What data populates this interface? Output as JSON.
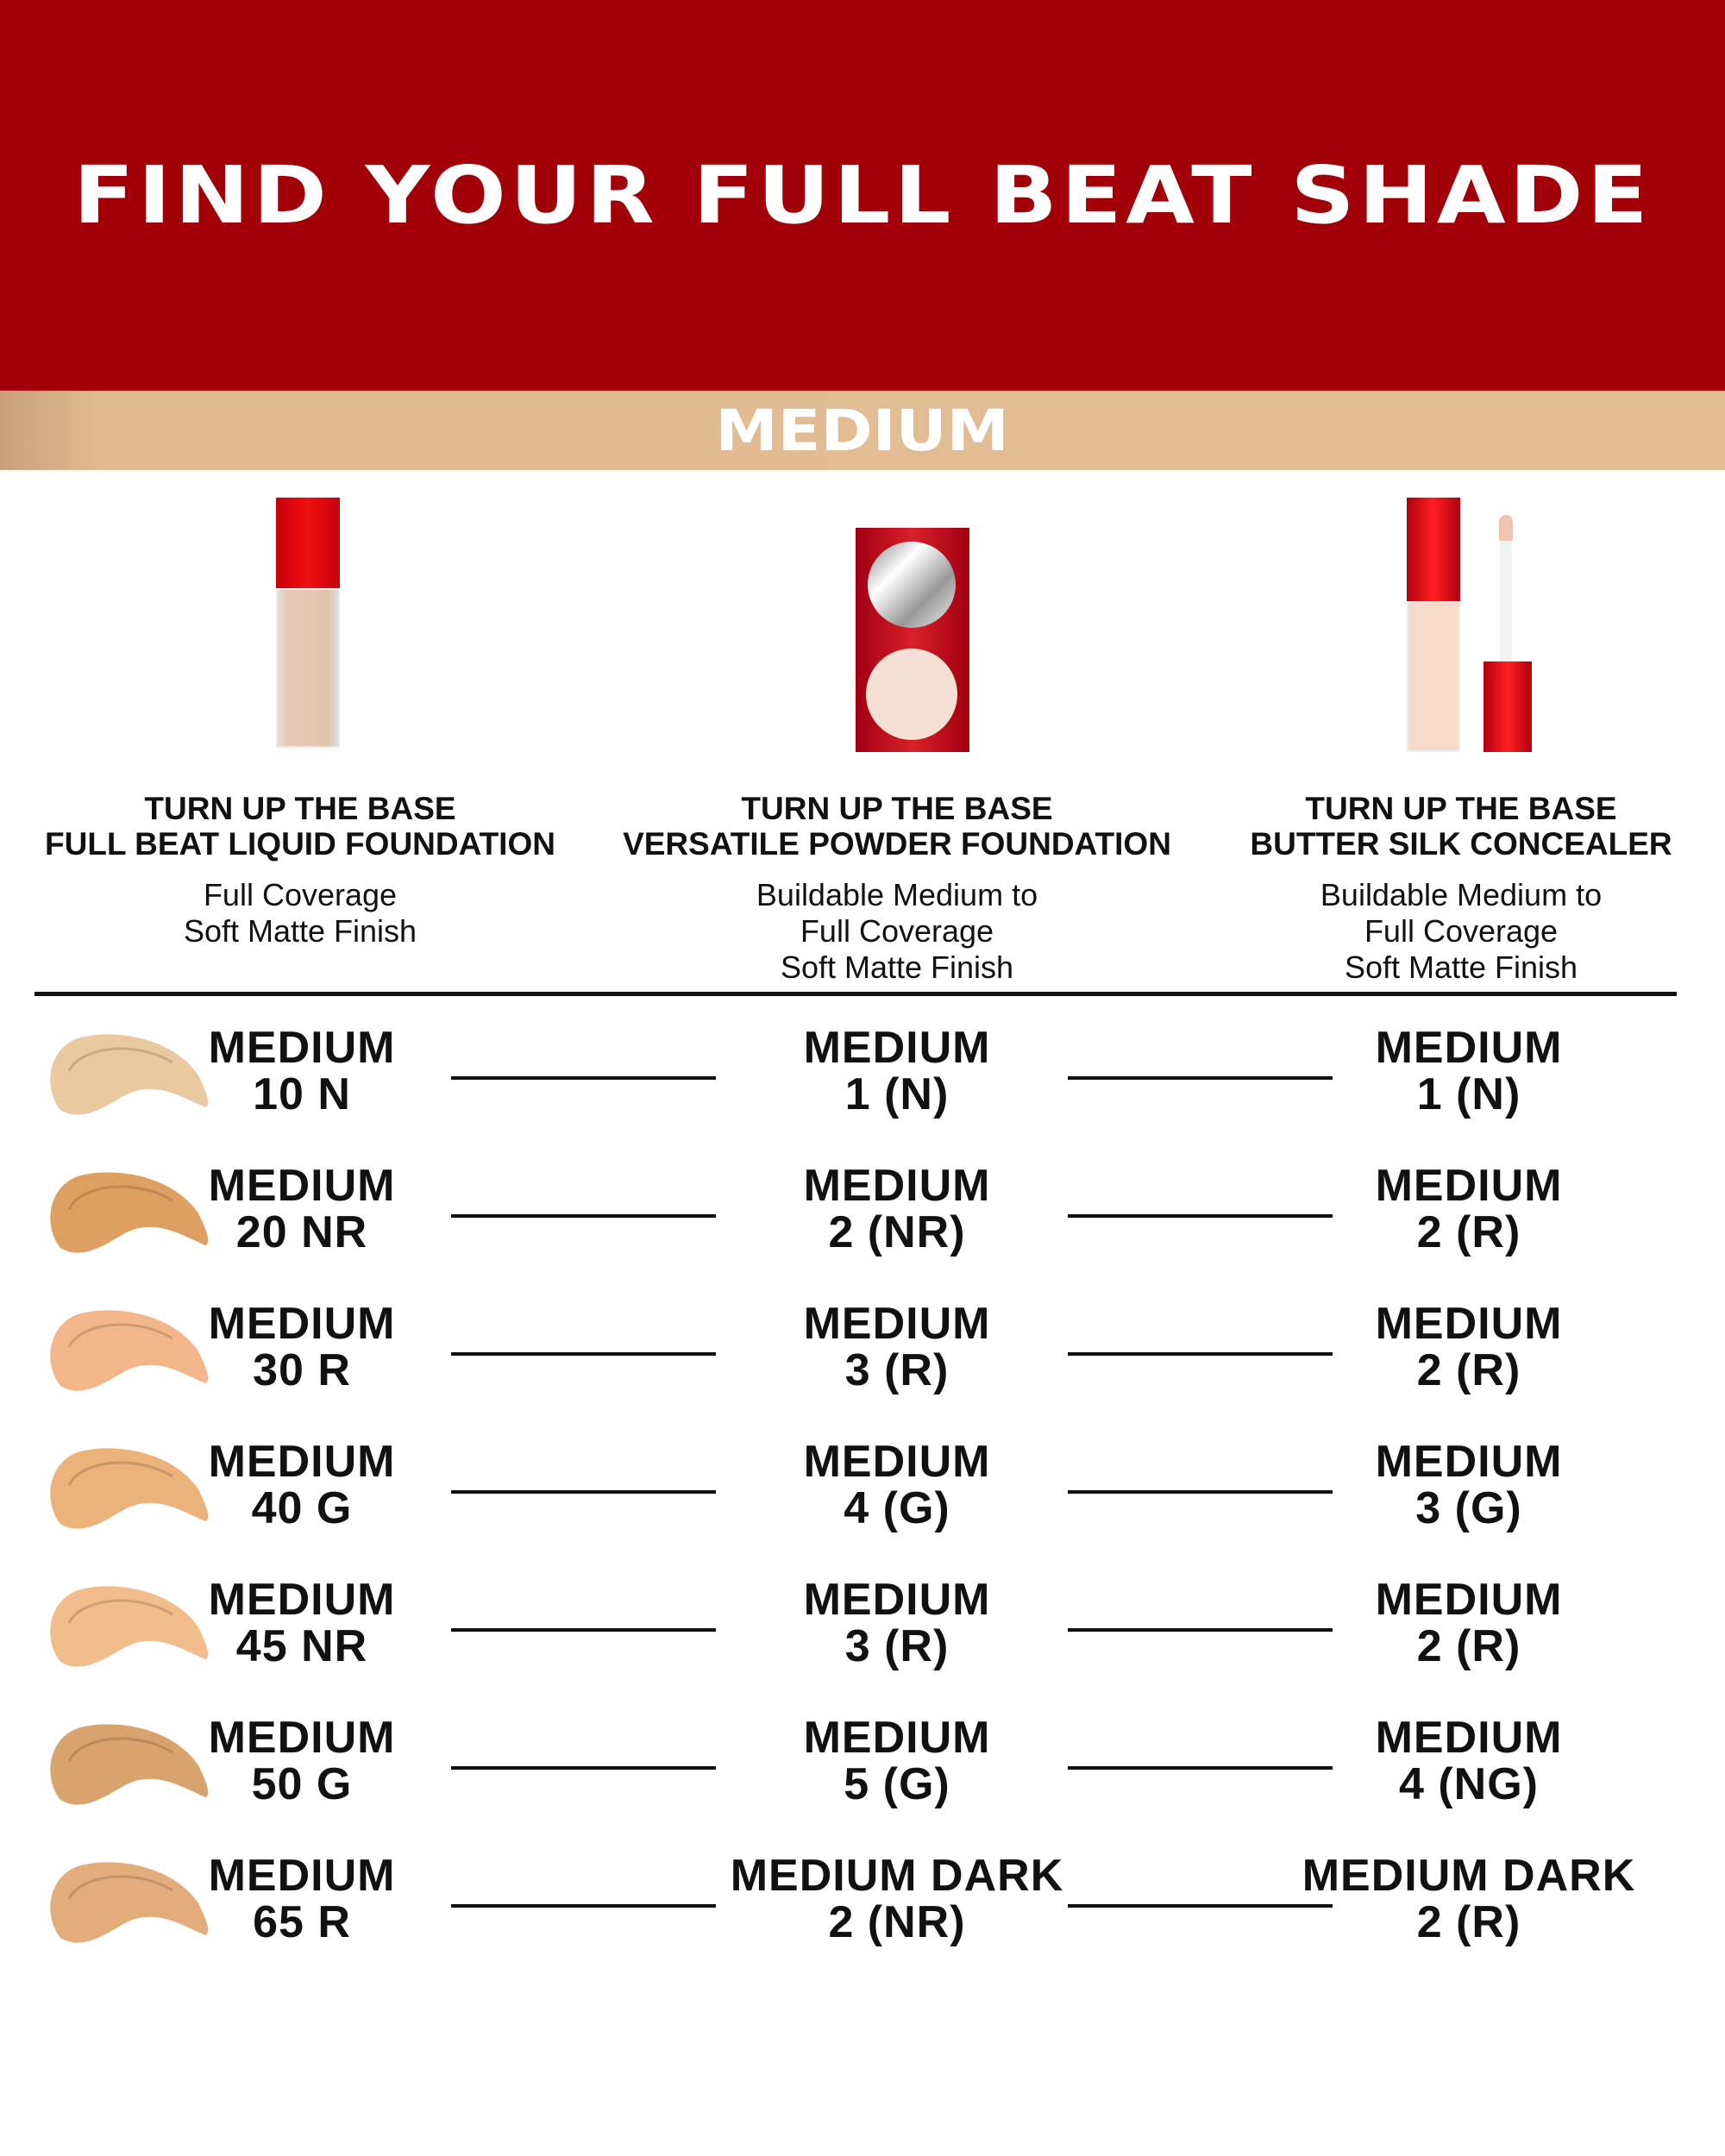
{
  "header": {
    "title": "FIND YOUR FULL BEAT SHADE",
    "category": "MEDIUM",
    "colors": {
      "header_bg": "#a10008",
      "band_bg": "#e3bc93"
    }
  },
  "products": [
    {
      "line": "TURN UP THE BASE",
      "name": "FULL BEAT LIQUID FOUNDATION",
      "desc": [
        "Full Coverage",
        "Soft Matte Finish"
      ],
      "icon": "foundation-bottle-icon"
    },
    {
      "line": "TURN UP THE BASE",
      "name": "VERSATILE POWDER FOUNDATION",
      "desc": [
        "Buildable Medium to",
        "Full Coverage",
        "Soft Matte Finish"
      ],
      "icon": "powder-compact-icon"
    },
    {
      "line": "TURN UP THE BASE",
      "name": "BUTTER SILK CONCEALER",
      "desc": [
        "Buildable Medium to",
        "Full Coverage",
        "Soft Matte Finish"
      ],
      "icon": "concealer-wand-icon"
    }
  ],
  "rows": [
    {
      "swatch": "#e9c9a0",
      "liquid": [
        "MEDIUM",
        "10 N"
      ],
      "powder": [
        "MEDIUM",
        "1 (N)"
      ],
      "concealer": [
        "MEDIUM",
        "1 (N)"
      ]
    },
    {
      "swatch": "#dea062",
      "liquid": [
        "MEDIUM",
        "20 NR"
      ],
      "powder": [
        "MEDIUM",
        "2 (NR)"
      ],
      "concealer": [
        "MEDIUM",
        "2 (R)"
      ]
    },
    {
      "swatch": "#f2b68a",
      "liquid": [
        "MEDIUM",
        "30 R"
      ],
      "powder": [
        "MEDIUM",
        "3 (R)"
      ],
      "concealer": [
        "MEDIUM",
        "2 (R)"
      ]
    },
    {
      "swatch": "#ebb27a",
      "liquid": [
        "MEDIUM",
        "40 G"
      ],
      "powder": [
        "MEDIUM",
        "4 (G)"
      ],
      "concealer": [
        "MEDIUM",
        "3 (G)"
      ]
    },
    {
      "swatch": "#f0bd8b",
      "liquid": [
        "MEDIUM",
        "45 NR"
      ],
      "powder": [
        "MEDIUM",
        "3 (R)"
      ],
      "concealer": [
        "MEDIUM",
        "2 (R)"
      ]
    },
    {
      "swatch": "#d9a36d",
      "liquid": [
        "MEDIUM",
        "50 G"
      ],
      "powder": [
        "MEDIUM",
        "5 (G)"
      ],
      "concealer": [
        "MEDIUM",
        "4 (NG)"
      ]
    },
    {
      "swatch": "#e2ad7b",
      "liquid": [
        "MEDIUM",
        "65 R"
      ],
      "powder": [
        "MEDIUM DARK",
        "2 (NR)"
      ],
      "concealer": [
        "MEDIUM DARK",
        "2 (R)"
      ]
    }
  ]
}
